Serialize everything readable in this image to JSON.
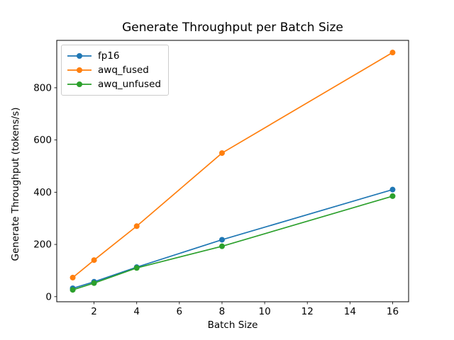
{
  "chart_data": {
    "type": "line",
    "title": "Generate Throughput per Batch Size",
    "xlabel": "Batch Size",
    "ylabel": "Generate Throughput (tokens/s)",
    "x": [
      1,
      2,
      4,
      8,
      16
    ],
    "series": [
      {
        "name": "fp16",
        "color": "#1f77b4",
        "values": [
          32,
          57,
          113,
          218,
          410
        ]
      },
      {
        "name": "awq_fused",
        "color": "#ff7f0e",
        "values": [
          73,
          140,
          270,
          550,
          935
        ]
      },
      {
        "name": "awq_unfused",
        "color": "#2ca02c",
        "values": [
          26,
          52,
          110,
          193,
          385
        ]
      }
    ],
    "marker": "o",
    "xticks": [
      2,
      4,
      6,
      8,
      10,
      12,
      14,
      16
    ],
    "yticks": [
      0,
      200,
      400,
      600,
      800
    ],
    "xlim": [
      0.25,
      16.75
    ],
    "ylim": [
      -19.5,
      981.5
    ],
    "grid": false,
    "legend_position": "upper left",
    "axis_color": "#000000",
    "background_color": "#ffffff"
  }
}
